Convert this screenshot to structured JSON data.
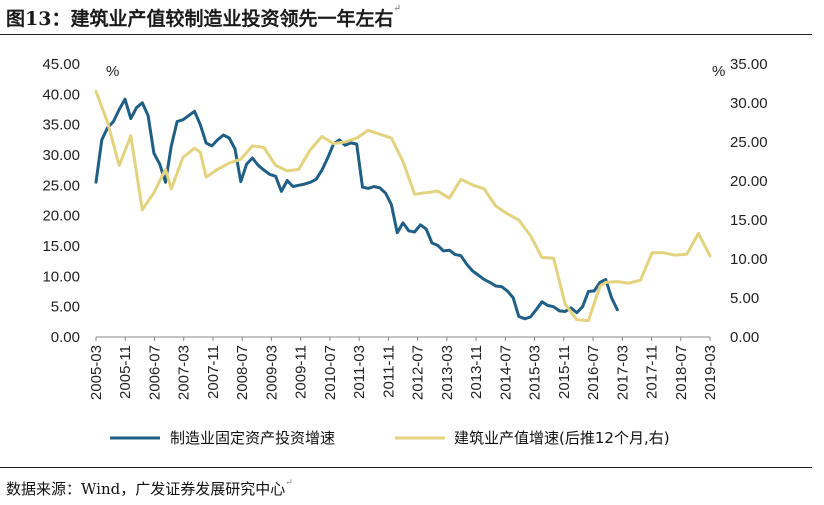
{
  "header": {
    "title": "图13：建筑业产值较制造业投资领先一年左右",
    "title_mark": "↵"
  },
  "footer": {
    "source": "数据来源：Wind，广发证券发展研究中心",
    "source_mark": "↵"
  },
  "colors": {
    "series1": "#1f5f86",
    "series2": "#e3d27e"
  },
  "chart_data": {
    "type": "line",
    "left_unit": "%",
    "right_unit": "%",
    "left_ticks": [
      "45.00",
      "40.00",
      "35.00",
      "30.00",
      "25.00",
      "20.00",
      "15.00",
      "10.00",
      "5.00",
      "0.00"
    ],
    "right_ticks": [
      "35.00",
      "30.00",
      "25.00",
      "20.00",
      "15.00",
      "10.00",
      "5.00",
      "0.00"
    ],
    "ylim_left": [
      0,
      45
    ],
    "ylim_right": [
      0,
      35
    ],
    "x_ticks": [
      "2005-03",
      "2005-11",
      "2006-07",
      "2007-03",
      "2007-11",
      "2008-07",
      "2009-03",
      "2009-11",
      "2010-07",
      "2011-03",
      "2011-11",
      "2012-07",
      "2013-03",
      "2013-11",
      "2014-07",
      "2015-03",
      "2015-11",
      "2016-07",
      "2017-03",
      "2017-11",
      "2018-07",
      "2019-03"
    ],
    "grid": false,
    "legend_position": "bottom",
    "series": [
      {
        "name": "制造业固定资产投资增速",
        "axis": "left",
        "points": [
          [
            0,
            25.5
          ],
          [
            1,
            32.5
          ],
          [
            2,
            34.5
          ],
          [
            3,
            35.5
          ],
          [
            4,
            37.5
          ],
          [
            5,
            39.2
          ],
          [
            6,
            36
          ],
          [
            7,
            37.8
          ],
          [
            8,
            38.6
          ],
          [
            9,
            36.5
          ],
          [
            10,
            30.3
          ],
          [
            11,
            28.5
          ],
          [
            12,
            25.5
          ],
          [
            13,
            31.5
          ],
          [
            14,
            35.5
          ],
          [
            15,
            35.8
          ],
          [
            16,
            36.5
          ],
          [
            17,
            37.2
          ],
          [
            18,
            35
          ],
          [
            19,
            32
          ],
          [
            20,
            31.5
          ],
          [
            21,
            32.5
          ],
          [
            22,
            33.3
          ],
          [
            23,
            32.8
          ],
          [
            24,
            31
          ],
          [
            25,
            25.6
          ],
          [
            26,
            28.5
          ],
          [
            27,
            29.5
          ],
          [
            28,
            28.3
          ],
          [
            29,
            27.5
          ],
          [
            30,
            26.8
          ],
          [
            31,
            26.5
          ],
          [
            32,
            24
          ],
          [
            33,
            25.8
          ],
          [
            34,
            24.8
          ],
          [
            35,
            25
          ],
          [
            36,
            25.2
          ],
          [
            37,
            25.5
          ],
          [
            38,
            26
          ],
          [
            39,
            27.5
          ],
          [
            40,
            29.5
          ],
          [
            41,
            31.8
          ],
          [
            42,
            32.5
          ],
          [
            43,
            31.6
          ],
          [
            44,
            32
          ],
          [
            45,
            31.8
          ],
          [
            46,
            24.7
          ],
          [
            47,
            24.5
          ],
          [
            48,
            24.8
          ],
          [
            49,
            24.6
          ],
          [
            50,
            23.7
          ],
          [
            51,
            21.8
          ],
          [
            52,
            17.2
          ],
          [
            53,
            18.8
          ],
          [
            54,
            17.5
          ],
          [
            55,
            17.3
          ],
          [
            56,
            18.5
          ],
          [
            57,
            17.8
          ],
          [
            58,
            15.5
          ],
          [
            59,
            15.1
          ],
          [
            60,
            14.2
          ],
          [
            61,
            14.3
          ],
          [
            62,
            13.6
          ],
          [
            63,
            13.4
          ],
          [
            64,
            12
          ],
          [
            65,
            10.9
          ],
          [
            66,
            10.2
          ],
          [
            67,
            9.5
          ],
          [
            68,
            9
          ],
          [
            69,
            8.4
          ],
          [
            70,
            8.3
          ],
          [
            71,
            7.6
          ],
          [
            72,
            6.5
          ],
          [
            73,
            3.4
          ],
          [
            74,
            3
          ],
          [
            75,
            3.3
          ],
          [
            76,
            4.5
          ],
          [
            77,
            5.8
          ],
          [
            78,
            5.2
          ],
          [
            79,
            5
          ],
          [
            80,
            4.3
          ],
          [
            81,
            4.2
          ],
          [
            82,
            4.8
          ],
          [
            83,
            4
          ],
          [
            84,
            5
          ],
          [
            85,
            7.5
          ],
          [
            86,
            7.6
          ],
          [
            87,
            9
          ],
          [
            88,
            9.5
          ],
          [
            89,
            6.5
          ],
          [
            90,
            4.5
          ]
        ]
      },
      {
        "name": "建筑业产值增速(后推12个月,右)",
        "axis": "right",
        "points": [
          [
            0,
            31.5
          ],
          [
            2,
            27.5
          ],
          [
            4,
            22
          ],
          [
            6,
            25.8
          ],
          [
            8,
            16.3
          ],
          [
            10,
            18.5
          ],
          [
            12,
            21.5
          ],
          [
            13,
            19
          ],
          [
            15,
            23
          ],
          [
            17,
            24.2
          ],
          [
            18,
            23.7
          ],
          [
            19,
            20.5
          ],
          [
            21,
            21.5
          ],
          [
            23,
            22.3
          ],
          [
            25,
            22.8
          ],
          [
            27,
            24.5
          ],
          [
            29,
            24.3
          ],
          [
            31,
            22
          ],
          [
            33,
            21.3
          ],
          [
            35,
            21.5
          ],
          [
            37,
            24
          ],
          [
            39,
            25.7
          ],
          [
            41,
            24.8
          ],
          [
            43,
            25
          ],
          [
            45,
            25.5
          ],
          [
            47,
            26.5
          ],
          [
            49,
            26
          ],
          [
            51,
            25.5
          ],
          [
            53,
            22.5
          ],
          [
            55,
            18.3
          ],
          [
            57,
            18.5
          ],
          [
            59,
            18.7
          ],
          [
            61,
            17.8
          ],
          [
            63,
            20.2
          ],
          [
            65,
            19.5
          ],
          [
            67,
            19
          ],
          [
            69,
            16.8
          ],
          [
            71,
            15.8
          ],
          [
            73,
            15
          ],
          [
            75,
            13
          ],
          [
            77,
            10.2
          ],
          [
            79,
            10.1
          ],
          [
            81,
            4.2
          ],
          [
            83,
            2.2
          ],
          [
            85,
            2.1
          ],
          [
            87,
            6.5
          ],
          [
            88,
            7
          ],
          [
            90,
            7.1
          ],
          [
            92,
            6.9
          ],
          [
            94,
            7.3
          ],
          [
            96,
            10.8
          ],
          [
            98,
            10.8
          ],
          [
            100,
            10.5
          ],
          [
            102,
            10.6
          ],
          [
            104,
            13.3
          ],
          [
            106,
            10.4
          ]
        ]
      }
    ]
  }
}
